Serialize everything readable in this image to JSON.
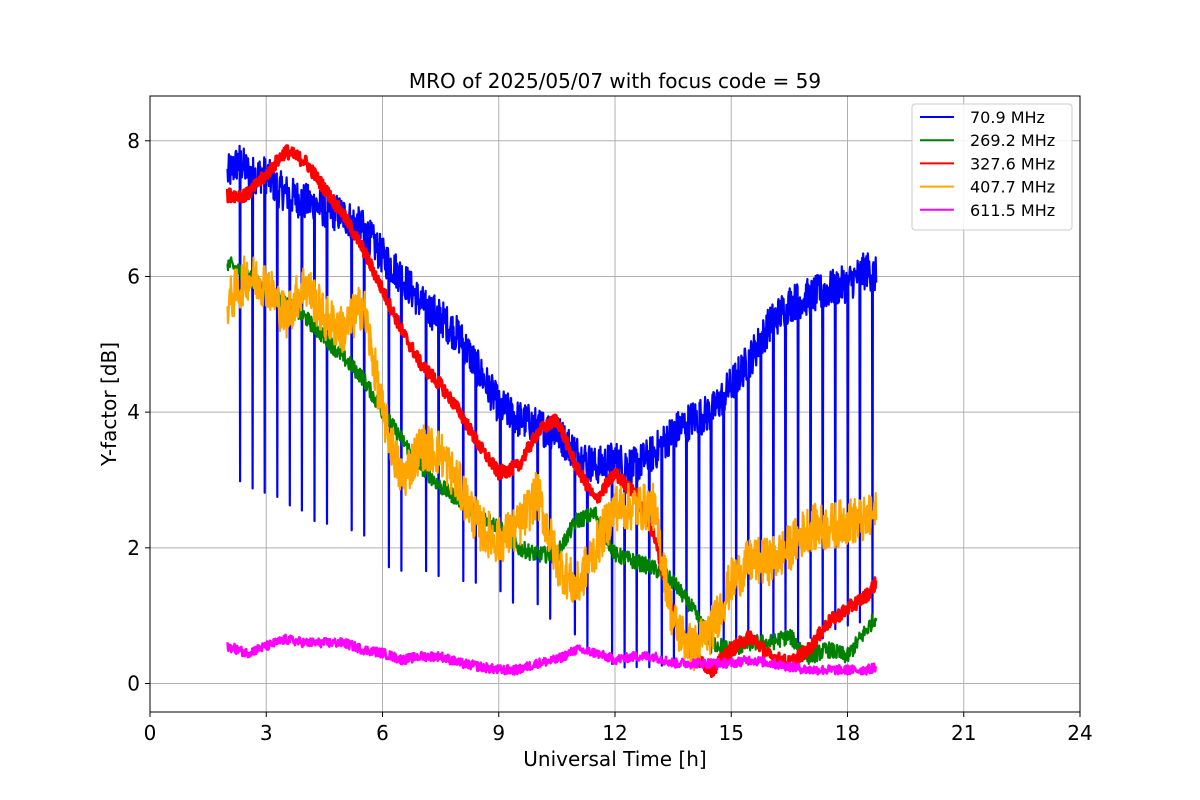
{
  "chart_data": {
    "type": "line",
    "title": "MRO of 2025/05/07 with focus code = 59",
    "xlabel": "Universal Time [h]",
    "ylabel": "Y-factor [dB]",
    "xlim": [
      0,
      24
    ],
    "ylim": [
      -0.42,
      8.66
    ],
    "xticks": [
      "0",
      "3",
      "6",
      "9",
      "12",
      "15",
      "18",
      "21",
      "24"
    ],
    "yticks": [
      "0",
      "2",
      "4",
      "6",
      "8"
    ],
    "grid": true,
    "legend_position": "top-right",
    "series": [
      {
        "name": " 70.9 MHz",
        "legend_label": " 70.9 MHz",
        "color": "#0000ff",
        "x": [
          2.0,
          2.3,
          2.6,
          3.0,
          3.3,
          3.6,
          4.0,
          4.5,
          5.0,
          5.5,
          6.0,
          6.5,
          7.0,
          7.5,
          8.0,
          8.5,
          9.0,
          9.5,
          10.0,
          10.5,
          11.0,
          11.5,
          12.0,
          12.5,
          13.0,
          13.5,
          14.0,
          14.5,
          15.0,
          15.5,
          16.0,
          16.5,
          17.0,
          17.5,
          18.0,
          18.5,
          18.75
        ],
        "values": [
          7.5,
          7.7,
          7.5,
          7.5,
          7.3,
          7.2,
          7.1,
          7.0,
          6.9,
          6.7,
          6.3,
          6.0,
          5.6,
          5.4,
          5.1,
          4.6,
          4.1,
          3.9,
          3.8,
          3.7,
          3.4,
          3.2,
          3.3,
          3.2,
          3.4,
          3.7,
          3.9,
          4.0,
          4.4,
          4.8,
          5.3,
          5.6,
          5.7,
          5.8,
          5.9,
          6.1,
          6.0
        ],
        "dip_values": [
          3.2,
          3.0,
          2.9,
          2.8,
          2.7,
          2.6,
          2.5,
          2.4,
          2.3,
          2.2,
          1.8,
          1.7,
          1.6,
          1.55,
          1.5,
          1.45,
          1.3,
          1.2,
          1.1,
          0.9,
          0.7,
          0.5,
          0.3,
          0.2,
          0.2,
          0.3,
          0.4,
          0.5,
          0.5,
          0.6,
          0.6,
          0.6,
          0.6,
          0.7,
          0.8,
          0.9,
          0.9
        ]
      },
      {
        "name": "269.2 MHz",
        "legend_label": "269.2 MHz",
        "color": "#008000",
        "x": [
          2.0,
          2.5,
          3.0,
          3.5,
          4.0,
          4.5,
          5.0,
          5.5,
          6.0,
          6.5,
          7.0,
          7.5,
          8.0,
          8.5,
          9.0,
          9.5,
          10.0,
          10.5,
          11.0,
          11.5,
          12.0,
          12.5,
          13.0,
          13.5,
          14.0,
          14.5,
          15.0,
          15.5,
          16.0,
          16.5,
          17.0,
          17.5,
          18.0,
          18.5,
          18.75
        ],
        "values": [
          6.2,
          6.0,
          5.8,
          5.6,
          5.4,
          5.1,
          4.8,
          4.5,
          4.0,
          3.6,
          3.2,
          2.9,
          2.7,
          2.5,
          2.3,
          2.0,
          1.9,
          1.9,
          2.4,
          2.5,
          1.9,
          1.8,
          1.7,
          1.5,
          1.1,
          0.6,
          0.5,
          0.6,
          0.6,
          0.7,
          0.4,
          0.5,
          0.4,
          0.8,
          1.0
        ]
      },
      {
        "name": "327.6 MHz",
        "legend_label": "327.6 MHz",
        "color": "#ff0000",
        "x": [
          2.0,
          2.5,
          3.0,
          3.5,
          4.0,
          4.5,
          5.0,
          5.5,
          6.0,
          6.5,
          7.0,
          7.5,
          8.0,
          8.5,
          9.0,
          9.5,
          10.0,
          10.5,
          11.0,
          11.5,
          12.0,
          12.5,
          13.0,
          13.5,
          14.0,
          14.5,
          15.0,
          15.5,
          16.0,
          16.5,
          17.0,
          17.5,
          18.0,
          18.5,
          18.75
        ],
        "values": [
          7.2,
          7.2,
          7.5,
          7.85,
          7.7,
          7.3,
          6.9,
          6.4,
          5.8,
          5.2,
          4.7,
          4.4,
          4.0,
          3.5,
          3.1,
          3.2,
          3.7,
          3.9,
          3.2,
          2.7,
          3.1,
          2.8,
          2.2,
          1.0,
          0.4,
          0.2,
          0.5,
          0.7,
          0.4,
          0.3,
          0.5,
          0.9,
          1.1,
          1.3,
          1.5
        ]
      },
      {
        "name": "407.7 MHz",
        "legend_label": "407.7 MHz",
        "color": "#ffa500",
        "x": [
          2.0,
          2.5,
          3.0,
          3.5,
          4.0,
          4.5,
          5.0,
          5.5,
          6.0,
          6.5,
          7.0,
          7.5,
          8.0,
          8.5,
          9.0,
          9.5,
          10.0,
          10.5,
          11.0,
          11.5,
          12.0,
          12.5,
          13.0,
          13.5,
          14.0,
          14.5,
          15.0,
          15.5,
          16.0,
          16.5,
          17.0,
          17.5,
          18.0,
          18.5,
          18.75
        ],
        "values": [
          5.6,
          6.0,
          5.9,
          5.4,
          5.9,
          5.4,
          5.2,
          5.6,
          4.0,
          3.0,
          3.5,
          3.4,
          2.9,
          2.3,
          2.1,
          2.3,
          2.8,
          1.8,
          1.4,
          2.0,
          2.6,
          2.6,
          2.6,
          0.9,
          0.5,
          0.8,
          1.5,
          1.8,
          1.8,
          2.0,
          2.3,
          2.3,
          2.4,
          2.4,
          2.5
        ]
      },
      {
        "name": "611.5 MHz",
        "legend_label": "611.5 MHz",
        "color": "#ff00ff",
        "x": [
          2.0,
          2.5,
          3.0,
          3.5,
          4.0,
          4.5,
          5.0,
          5.5,
          6.0,
          6.5,
          7.0,
          7.5,
          8.0,
          8.5,
          9.0,
          9.5,
          10.0,
          10.5,
          11.0,
          11.5,
          12.0,
          12.5,
          13.0,
          13.5,
          14.0,
          14.5,
          15.0,
          15.5,
          16.0,
          16.5,
          17.0,
          17.5,
          18.0,
          18.5,
          18.75
        ],
        "values": [
          0.55,
          0.45,
          0.55,
          0.65,
          0.6,
          0.6,
          0.6,
          0.5,
          0.45,
          0.35,
          0.4,
          0.4,
          0.3,
          0.25,
          0.2,
          0.2,
          0.3,
          0.35,
          0.5,
          0.45,
          0.35,
          0.4,
          0.4,
          0.3,
          0.3,
          0.3,
          0.3,
          0.35,
          0.3,
          0.25,
          0.2,
          0.2,
          0.2,
          0.2,
          0.25
        ]
      }
    ]
  }
}
